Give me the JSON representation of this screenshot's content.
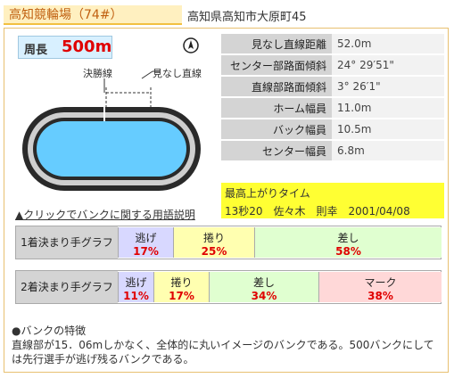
{
  "header": {
    "title": "高知競輪場（74#）",
    "address": "高知県高知市大原町45"
  },
  "track": {
    "length_label": "周長",
    "length_value": "500m",
    "finish_line_label": "決勝線",
    "straight_label": "見なし直線",
    "glossary_link": "▲クリックでバンクに関する用語説明"
  },
  "specs": [
    {
      "key": "見なし直線距離",
      "value": "52.0m"
    },
    {
      "key": "センター部路面傾斜",
      "value": "24° 29′51\""
    },
    {
      "key": "直線部路面傾斜",
      "value": "3° 26′1\""
    },
    {
      "key": "ホーム幅員",
      "value": "11.0m"
    },
    {
      "key": "バック幅員",
      "value": "10.5m"
    },
    {
      "key": "センター幅員",
      "value": "6.8m"
    }
  ],
  "record": {
    "title": "最高上がりタイム",
    "value": "13秒20　佐々木　則幸　2001/04/08"
  },
  "graphs": [
    {
      "label": "1着決まり手グラフ",
      "segments": [
        {
          "name": "逃げ",
          "pct": "17%",
          "share": 17,
          "color": "#d8d8ff"
        },
        {
          "name": "捲り",
          "pct": "25%",
          "share": 25,
          "color": "#ffffb0"
        },
        {
          "name": "差し",
          "pct": "58%",
          "share": 58,
          "color": "#e0ffd0"
        }
      ]
    },
    {
      "label": "2着決まり手グラフ",
      "segments": [
        {
          "name": "逃げ",
          "pct": "11%",
          "share": 11,
          "color": "#d8d8ff"
        },
        {
          "name": "捲り",
          "pct": "17%",
          "share": 17,
          "color": "#ffffb0"
        },
        {
          "name": "差し",
          "pct": "34%",
          "share": 34,
          "color": "#e0ffd0"
        },
        {
          "name": "マーク",
          "pct": "38%",
          "share": 38,
          "color": "#ffd8d8"
        }
      ]
    }
  ],
  "feature": {
    "title": "●バンクの特徴",
    "text": "直線部が15．06mしかなく、全体的に丸いイメージのバンクである。500バンクにしては先行選手が逃げ残るバンクである。"
  },
  "colors": {
    "title_text": "#c06010",
    "track_surface": "#66ccff",
    "record_bg": "#ffff33",
    "percent_text": "#e00000"
  }
}
